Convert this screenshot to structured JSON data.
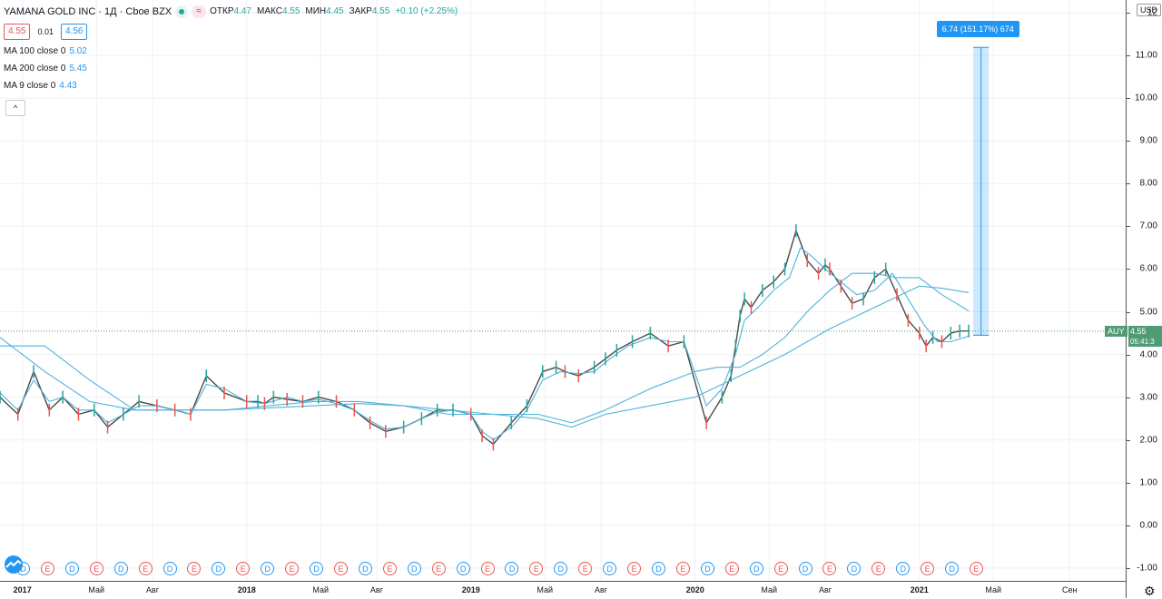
{
  "header": {
    "title": "YAMANA GOLD INC · 1Д · Cboe BZX",
    "ohlc": [
      {
        "label": "ОТКР",
        "value": "4.47"
      },
      {
        "label": "МАКС",
        "value": "4.55"
      },
      {
        "label": "МИН",
        "value": "4.45"
      },
      {
        "label": "ЗАКР",
        "value": "4.55"
      },
      {
        "label": "",
        "value": "+0.10 (+2.25%)"
      }
    ],
    "bid": "4.55",
    "spread": "0.01",
    "ask": "4.56",
    "eq_icon": "≈"
  },
  "indicators": [
    {
      "label": "MA 100 close 0",
      "value": "5.02"
    },
    {
      "label": "MA 200 close 0",
      "value": "5.45"
    },
    {
      "label": "MA 9 close 0",
      "value": "4.43"
    }
  ],
  "collapse_icon": "^",
  "measure_label": "6.74 (151.17%) 674",
  "last": {
    "symbol": "AUY",
    "price": "4.55",
    "countdown": "05:41:3"
  },
  "currency": "USD",
  "settings_icon": "gear-icon",
  "colors": {
    "candle_up": "#26a69a",
    "candle_down": "#ef5350",
    "ma": "#4fb3d9",
    "measure": "#2196f3",
    "last": "#4f9b73"
  },
  "events": [
    "D",
    "E",
    "D",
    "E",
    "D",
    "E",
    "D",
    "E",
    "D",
    "E",
    "D",
    "E",
    "D",
    "E",
    "D",
    "E",
    "D",
    "E",
    "D",
    "E",
    "D",
    "E",
    "D",
    "E",
    "D",
    "E",
    "D",
    "E",
    "D",
    "E",
    "D",
    "E",
    "D",
    "E",
    "D",
    "E",
    "D",
    "E",
    "D",
    "E"
  ],
  "chart_data": {
    "type": "line",
    "title": "YAMANA GOLD INC · 1Д · Cboe BZX",
    "xlabel": "",
    "ylabel": "",
    "ylim": [
      -1.3,
      12.3
    ],
    "y_ticks": [
      -1.0,
      0.0,
      1.0,
      2.0,
      3.0,
      4.0,
      5.0,
      6.0,
      7.0,
      8.0,
      9.0,
      10.0,
      11.0,
      12.0
    ],
    "y_tick_labels": [
      "-1.00",
      "0.00",
      "1.00",
      "2.00",
      "3.00",
      "4.00",
      "5.00",
      "6.00",
      "7.00",
      "8.00",
      "9.00",
      "10.00",
      "11.00",
      "12"
    ],
    "x_ticks": [
      {
        "label": "2017",
        "t": 2017.0,
        "year": true
      },
      {
        "label": "Май",
        "t": 2017.33
      },
      {
        "label": "Авг",
        "t": 2017.58
      },
      {
        "label": "2018",
        "t": 2018.0,
        "year": true
      },
      {
        "label": "Май",
        "t": 2018.33
      },
      {
        "label": "Авг",
        "t": 2018.58
      },
      {
        "label": "2019",
        "t": 2019.0,
        "year": true
      },
      {
        "label": "Май",
        "t": 2019.33
      },
      {
        "label": "Авг",
        "t": 2019.58
      },
      {
        "label": "2020",
        "t": 2020.0,
        "year": true
      },
      {
        "label": "Май",
        "t": 2020.33
      },
      {
        "label": "Авг",
        "t": 2020.58
      },
      {
        "label": "2021",
        "t": 2021.0,
        "year": true
      },
      {
        "label": "Май",
        "t": 2021.33
      },
      {
        "label": "Сен",
        "t": 2021.67
      }
    ],
    "x_range": [
      2016.9,
      2021.92
    ],
    "grid": true,
    "series": [
      {
        "name": "price",
        "x": [
          2016.9,
          2016.98,
          2017.05,
          2017.12,
          2017.18,
          2017.25,
          2017.32,
          2017.38,
          2017.45,
          2017.52,
          2017.6,
          2017.68,
          2017.75,
          2017.82,
          2017.9,
          2018.0,
          2018.05,
          2018.08,
          2018.12,
          2018.18,
          2018.25,
          2018.32,
          2018.4,
          2018.48,
          2018.55,
          2018.62,
          2018.7,
          2018.78,
          2018.85,
          2018.92,
          2019.0,
          2019.05,
          2019.1,
          2019.18,
          2019.25,
          2019.32,
          2019.38,
          2019.42,
          2019.48,
          2019.55,
          2019.6,
          2019.65,
          2019.72,
          2019.8,
          2019.88,
          2019.95,
          2020.05,
          2020.12,
          2020.16,
          2020.18,
          2020.2,
          2020.22,
          2020.25,
          2020.3,
          2020.35,
          2020.4,
          2020.45,
          2020.5,
          2020.55,
          2020.58,
          2020.6,
          2020.65,
          2020.7,
          2020.75,
          2020.8,
          2020.85,
          2020.9,
          2020.95,
          2021.0,
          2021.03,
          2021.06,
          2021.1,
          2021.14,
          2021.18,
          2021.22
        ],
        "values": [
          3.0,
          2.6,
          3.6,
          2.7,
          3.0,
          2.6,
          2.7,
          2.3,
          2.6,
          2.9,
          2.8,
          2.7,
          2.6,
          3.5,
          3.1,
          2.9,
          2.9,
          2.85,
          3.0,
          2.95,
          2.9,
          3.0,
          2.9,
          2.7,
          2.4,
          2.2,
          2.3,
          2.5,
          2.7,
          2.7,
          2.6,
          2.1,
          1.9,
          2.4,
          2.8,
          3.6,
          3.7,
          3.6,
          3.5,
          3.7,
          3.9,
          4.1,
          4.3,
          4.5,
          4.2,
          4.3,
          2.4,
          3.0,
          3.5,
          4.2,
          4.9,
          5.3,
          5.1,
          5.5,
          5.7,
          6.0,
          6.9,
          6.2,
          5.9,
          6.1,
          6.0,
          5.6,
          5.2,
          5.3,
          5.8,
          6.0,
          5.4,
          4.8,
          4.5,
          4.2,
          4.4,
          4.3,
          4.5,
          4.55,
          4.55
        ]
      },
      {
        "name": "MA 100 close 0",
        "x": [
          2016.9,
          2017.1,
          2017.3,
          2017.5,
          2017.7,
          2017.9,
          2018.1,
          2018.3,
          2018.5,
          2018.7,
          2018.9,
          2019.1,
          2019.3,
          2019.45,
          2019.6,
          2019.8,
          2020.0,
          2020.1,
          2020.2,
          2020.3,
          2020.4,
          2020.5,
          2020.6,
          2020.7,
          2020.8,
          2020.9,
          2021.0,
          2021.1,
          2021.22
        ],
        "values": [
          4.4,
          3.6,
          2.9,
          2.7,
          2.7,
          2.7,
          2.8,
          2.9,
          2.9,
          2.8,
          2.6,
          2.6,
          2.6,
          2.4,
          2.7,
          3.2,
          3.6,
          3.7,
          3.7,
          4.0,
          4.4,
          5.0,
          5.5,
          5.9,
          5.9,
          5.8,
          5.8,
          5.4,
          5.02
        ]
      },
      {
        "name": "MA 200 close 0",
        "x": [
          2016.9,
          2017.1,
          2017.3,
          2017.5,
          2017.7,
          2017.9,
          2018.1,
          2018.3,
          2018.5,
          2018.7,
          2018.9,
          2019.1,
          2019.3,
          2019.45,
          2019.6,
          2019.8,
          2020.0,
          2020.2,
          2020.4,
          2020.6,
          2020.8,
          2021.0,
          2021.1,
          2021.22
        ],
        "values": [
          4.2,
          4.2,
          3.4,
          2.7,
          2.7,
          2.7,
          2.75,
          2.8,
          2.85,
          2.8,
          2.7,
          2.6,
          2.5,
          2.3,
          2.6,
          2.8,
          3.0,
          3.5,
          4.0,
          4.6,
          5.1,
          5.6,
          5.55,
          5.45
        ]
      },
      {
        "name": "MA 9 close 0",
        "x": [
          2016.9,
          2016.98,
          2017.05,
          2017.12,
          2017.18,
          2017.25,
          2017.32,
          2017.38,
          2017.45,
          2017.52,
          2017.6,
          2017.68,
          2017.75,
          2017.82,
          2017.9,
          2018.0,
          2018.08,
          2018.18,
          2018.25,
          2018.32,
          2018.4,
          2018.48,
          2018.55,
          2018.62,
          2018.7,
          2018.78,
          2018.85,
          2018.92,
          2019.0,
          2019.05,
          2019.1,
          2019.18,
          2019.25,
          2019.32,
          2019.4,
          2019.48,
          2019.55,
          2019.62,
          2019.7,
          2019.8,
          2019.88,
          2019.95,
          2020.05,
          2020.12,
          2020.18,
          2020.22,
          2020.28,
          2020.35,
          2020.42,
          2020.47,
          2020.52,
          2020.58,
          2020.65,
          2020.72,
          2020.8,
          2020.88,
          2020.95,
          2021.02,
          2021.08,
          2021.14,
          2021.22
        ],
        "values": [
          3.1,
          2.7,
          3.4,
          2.9,
          3.0,
          2.7,
          2.7,
          2.4,
          2.6,
          2.8,
          2.8,
          2.7,
          2.6,
          3.3,
          3.2,
          2.9,
          2.85,
          3.0,
          2.9,
          2.95,
          2.85,
          2.7,
          2.45,
          2.25,
          2.3,
          2.5,
          2.65,
          2.7,
          2.6,
          2.2,
          2.0,
          2.3,
          2.7,
          3.4,
          3.6,
          3.55,
          3.6,
          3.9,
          4.2,
          4.4,
          4.3,
          4.3,
          2.8,
          3.2,
          4.0,
          4.8,
          5.1,
          5.5,
          5.8,
          6.5,
          6.3,
          6.0,
          5.7,
          5.4,
          5.5,
          5.9,
          5.3,
          4.7,
          4.3,
          4.3,
          4.43
        ]
      }
    ],
    "measure": {
      "x": 2021.24,
      "x_end": 2021.31,
      "from": 4.45,
      "to": 11.19
    }
  }
}
